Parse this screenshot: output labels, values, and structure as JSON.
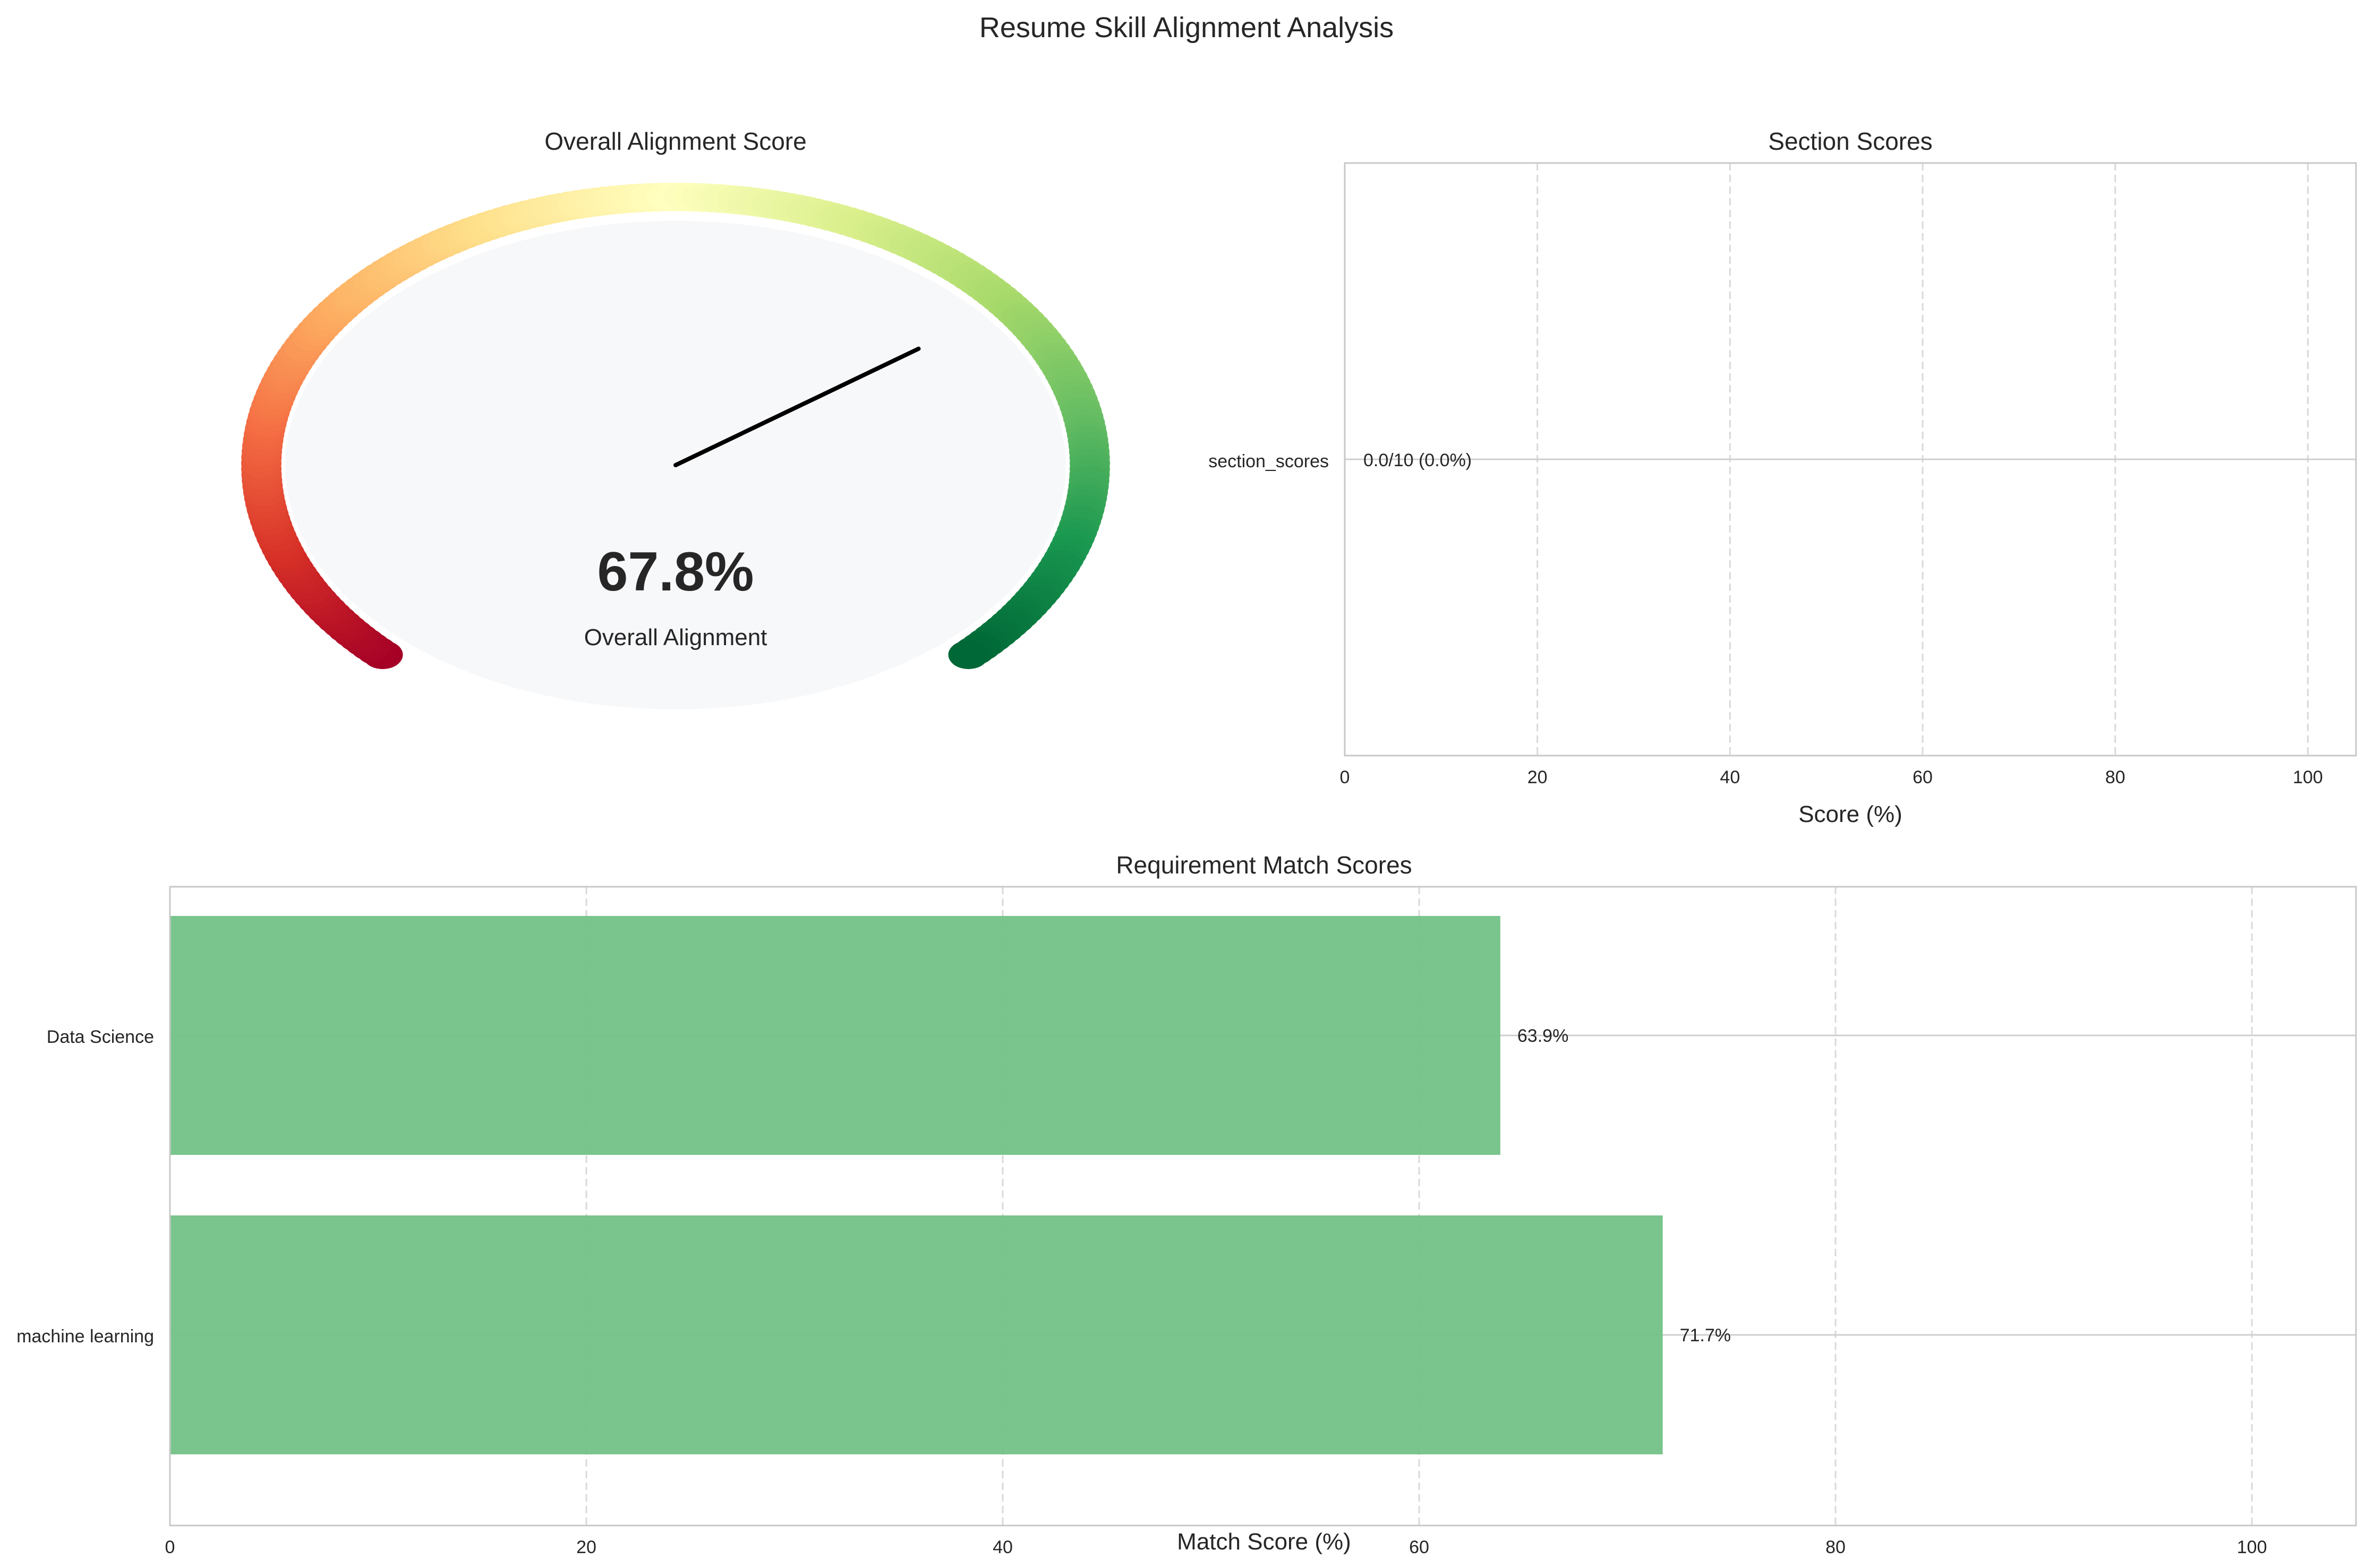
{
  "figure": {
    "title": "Resume Skill Alignment Analysis"
  },
  "chart_data": [
    {
      "type": "gauge",
      "title": "Overall Alignment Score",
      "value": 67.8,
      "value_label": "67.8%",
      "subtitle": "Overall Alignment",
      "range": [
        0,
        100
      ],
      "colormap": "RdYlGn"
    },
    {
      "type": "bar",
      "orientation": "horizontal",
      "title": "Section Scores",
      "xlabel": "Score (%)",
      "ylabel": "",
      "categories": [
        "section_scores"
      ],
      "values": [
        0.0
      ],
      "value_labels": [
        "0.0/10 (0.0%)"
      ],
      "xlim": [
        0,
        105
      ],
      "xticks": [
        "0",
        "20",
        "40",
        "60",
        "80",
        "100"
      ],
      "grid": "x-dashed"
    },
    {
      "type": "bar",
      "orientation": "horizontal",
      "title": "Requirement Match Scores",
      "xlabel": "Match Score (%)",
      "ylabel": "",
      "categories": [
        "Data Science",
        "machine learning"
      ],
      "values": [
        63.9,
        71.7
      ],
      "value_labels": [
        "63.9%",
        "71.7%"
      ],
      "xlim": [
        0,
        105
      ],
      "xticks": [
        "0",
        "20",
        "40",
        "60",
        "80",
        "100"
      ],
      "bar_color": "#73c287",
      "grid": "x-dashed"
    }
  ]
}
